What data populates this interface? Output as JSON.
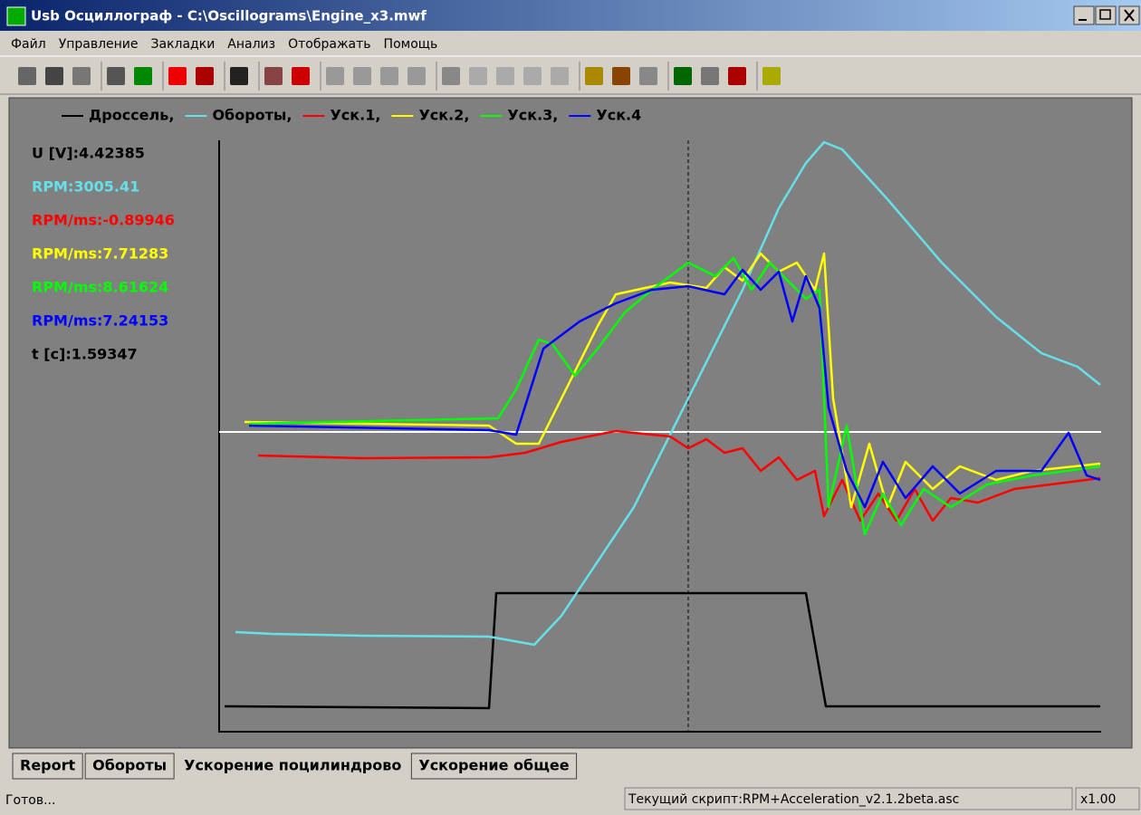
{
  "window": {
    "title": "Usb Осциллограф - C:\\Oscillograms\\Engine_x3.mwf"
  },
  "menu": [
    "Файл",
    "Управление",
    "Закладки",
    "Анализ",
    "Отображать",
    "Помощь"
  ],
  "legend": [
    {
      "name": "Дроссель,",
      "color": "#000000"
    },
    {
      "name": "Обороты,",
      "color": "#66e0e8"
    },
    {
      "name": "Уск.1,",
      "color": "#ff0000"
    },
    {
      "name": "Уск.2,",
      "color": "#ffff00"
    },
    {
      "name": "Уск.3,",
      "color": "#00ff00"
    },
    {
      "name": "Уск.4",
      "color": "#0000ff"
    }
  ],
  "readouts": [
    {
      "text": "U [V]:4.42385",
      "color": "#000000"
    },
    {
      "text": "RPM:3005.41",
      "color": "#66e0e8"
    },
    {
      "text": "RPM/ms:-0.89946",
      "color": "#ff0000"
    },
    {
      "text": "RPM/ms:7.71283",
      "color": "#ffff00"
    },
    {
      "text": "RPM/ms:8.61624",
      "color": "#00ff00"
    },
    {
      "text": "RPM/ms:7.24153",
      "color": "#0000ff"
    },
    {
      "text": "t [c]:1.59347",
      "color": "#000000"
    }
  ],
  "tabs": [
    "Report",
    "Обороты",
    "Ускорение поцилиндрово",
    "Ускорение общее"
  ],
  "status": {
    "left": "Готов...",
    "script": "Текущий скрипт:RPM+Acceleration_v2.1.2beta.asc",
    "zoom": "x1.00"
  }
}
